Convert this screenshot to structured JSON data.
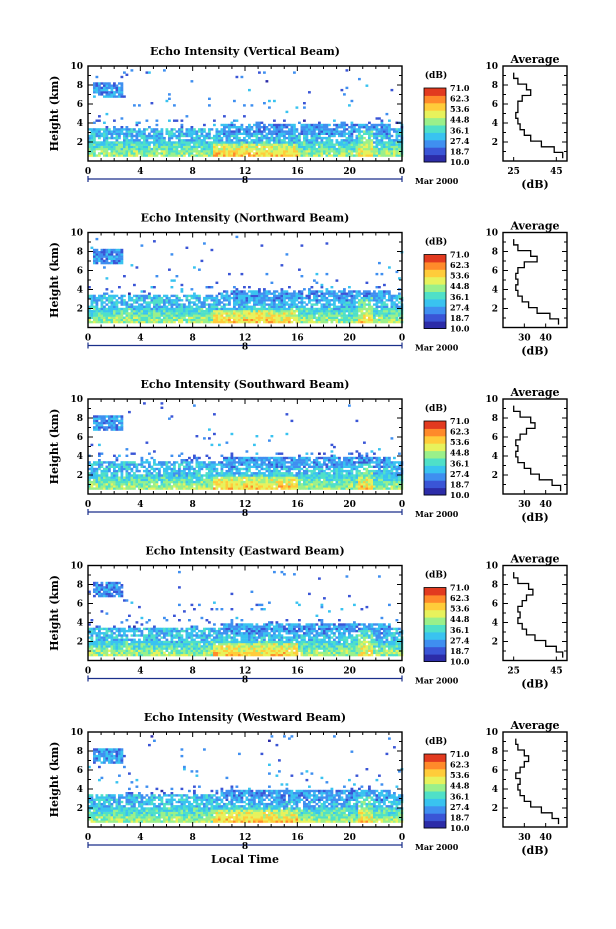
{
  "figure": {
    "x_axis_label": "Local Time",
    "y_axis_label": "Height (km)",
    "date_label": "Mar 2000",
    "date_tick": "8",
    "colorbar_unit": "(dB)",
    "average_title": "Average",
    "average_xlabel": "(dB)"
  },
  "colorbar": {
    "labels": [
      "71.0",
      "62.3",
      "53.6",
      "44.8",
      "36.1",
      "27.4",
      "18.7",
      "10.0"
    ],
    "colors": [
      "#d7191c",
      "#f46d43",
      "#fdae61",
      "#fee08b",
      "#ffffbf",
      "#a6d96a",
      "#66c2a5",
      "#3288bd",
      "#2c2ca8"
    ]
  },
  "chart_data": [
    {
      "type": "heatmap",
      "title": "Echo Intensity (Vertical Beam)",
      "xlabel": "",
      "ylabel": "Height (km)",
      "x_ticks": [
        "0",
        "4",
        "8",
        "12",
        "16",
        "20",
        "0"
      ],
      "y_ticks": [
        "2",
        "4",
        "6",
        "8",
        "10"
      ],
      "xlim": [
        0,
        24
      ],
      "ylim": [
        0,
        10
      ],
      "value_range": [
        10.0,
        71.0
      ],
      "average": {
        "xlim": [
          20,
          50
        ],
        "x_ticks": [
          "25",
          "45"
        ],
        "profile": [
          [
            0.6,
            48
          ],
          [
            1.2,
            44
          ],
          [
            1.8,
            38
          ],
          [
            2.4,
            33
          ],
          [
            3.0,
            30
          ],
          [
            3.6,
            28
          ],
          [
            4.2,
            27
          ],
          [
            4.8,
            26
          ],
          [
            5.4,
            27
          ],
          [
            6.0,
            27
          ],
          [
            6.6,
            29
          ],
          [
            7.2,
            33
          ],
          [
            7.8,
            31
          ],
          [
            8.4,
            27
          ],
          [
            9.0,
            25
          ]
        ]
      }
    },
    {
      "type": "heatmap",
      "title": "Echo Intensity (Northward Beam)",
      "xlabel": "",
      "ylabel": "Height (km)",
      "x_ticks": [
        "0",
        "4",
        "8",
        "12",
        "16",
        "20",
        "0"
      ],
      "y_ticks": [
        "2",
        "4",
        "6",
        "8",
        "10"
      ],
      "xlim": [
        0,
        24
      ],
      "ylim": [
        0,
        10
      ],
      "value_range": [
        10.0,
        71.0
      ],
      "average": {
        "xlim": [
          20,
          50
        ],
        "x_ticks": [
          "30",
          "40"
        ],
        "profile": [
          [
            0.6,
            46
          ],
          [
            1.2,
            42
          ],
          [
            1.8,
            36
          ],
          [
            2.4,
            32
          ],
          [
            3.0,
            29
          ],
          [
            3.6,
            27
          ],
          [
            4.2,
            26
          ],
          [
            4.8,
            27
          ],
          [
            5.4,
            26
          ],
          [
            6.0,
            27
          ],
          [
            6.6,
            30
          ],
          [
            7.2,
            36
          ],
          [
            7.8,
            33
          ],
          [
            8.4,
            27
          ],
          [
            9.0,
            25
          ]
        ]
      }
    },
    {
      "type": "heatmap",
      "title": "Echo Intensity (Southward Beam)",
      "xlabel": "",
      "ylabel": "Height (km)",
      "x_ticks": [
        "0",
        "4",
        "8",
        "12",
        "16",
        "20",
        "0"
      ],
      "y_ticks": [
        "2",
        "4",
        "6",
        "8",
        "10"
      ],
      "xlim": [
        0,
        24
      ],
      "ylim": [
        0,
        10
      ],
      "value_range": [
        10.0,
        71.0
      ],
      "average": {
        "xlim": [
          20,
          50
        ],
        "x_ticks": [
          "30",
          "40"
        ],
        "profile": [
          [
            0.6,
            47
          ],
          [
            1.2,
            43
          ],
          [
            1.8,
            37
          ],
          [
            2.4,
            33
          ],
          [
            3.0,
            30
          ],
          [
            3.6,
            27
          ],
          [
            4.2,
            26
          ],
          [
            4.8,
            27
          ],
          [
            5.4,
            26
          ],
          [
            6.0,
            28
          ],
          [
            6.6,
            31
          ],
          [
            7.2,
            35
          ],
          [
            7.8,
            33
          ],
          [
            8.4,
            28
          ],
          [
            9.0,
            25
          ]
        ]
      }
    },
    {
      "type": "heatmap",
      "title": "Echo Intensity (Eastward Beam)",
      "xlabel": "",
      "ylabel": "Height (km)",
      "x_ticks": [
        "0",
        "4",
        "8",
        "12",
        "16",
        "20",
        "0"
      ],
      "y_ticks": [
        "2",
        "4",
        "6",
        "8",
        "10"
      ],
      "xlim": [
        0,
        24
      ],
      "ylim": [
        0,
        10
      ],
      "value_range": [
        10.0,
        71.0
      ],
      "average": {
        "xlim": [
          20,
          50
        ],
        "x_ticks": [
          "25",
          "45"
        ],
        "profile": [
          [
            0.6,
            48
          ],
          [
            1.2,
            45
          ],
          [
            1.8,
            40
          ],
          [
            2.4,
            35
          ],
          [
            3.0,
            31
          ],
          [
            3.6,
            29
          ],
          [
            4.2,
            27
          ],
          [
            4.8,
            28
          ],
          [
            5.4,
            27
          ],
          [
            6.0,
            29
          ],
          [
            6.6,
            31
          ],
          [
            7.2,
            34
          ],
          [
            7.8,
            32
          ],
          [
            8.4,
            27
          ],
          [
            9.0,
            25
          ]
        ]
      }
    },
    {
      "type": "heatmap",
      "title": "Echo Intensity (Westward Beam)",
      "xlabel": "Local Time",
      "ylabel": "Height (km)",
      "x_ticks": [
        "0",
        "4",
        "8",
        "12",
        "16",
        "20",
        "0"
      ],
      "y_ticks": [
        "2",
        "4",
        "6",
        "8",
        "10"
      ],
      "xlim": [
        0,
        24
      ],
      "ylim": [
        0,
        10
      ],
      "value_range": [
        10.0,
        71.0
      ],
      "average": {
        "xlim": [
          20,
          50
        ],
        "x_ticks": [
          "30",
          "40"
        ],
        "profile": [
          [
            0.6,
            46
          ],
          [
            1.2,
            43
          ],
          [
            1.8,
            38
          ],
          [
            2.4,
            33
          ],
          [
            3.0,
            30
          ],
          [
            3.6,
            28
          ],
          [
            4.2,
            27
          ],
          [
            4.8,
            28
          ],
          [
            5.4,
            26
          ],
          [
            6.0,
            28
          ],
          [
            6.6,
            30
          ],
          [
            7.2,
            32
          ],
          [
            7.8,
            30
          ],
          [
            8.4,
            27
          ],
          [
            9.0,
            26
          ]
        ]
      }
    }
  ]
}
